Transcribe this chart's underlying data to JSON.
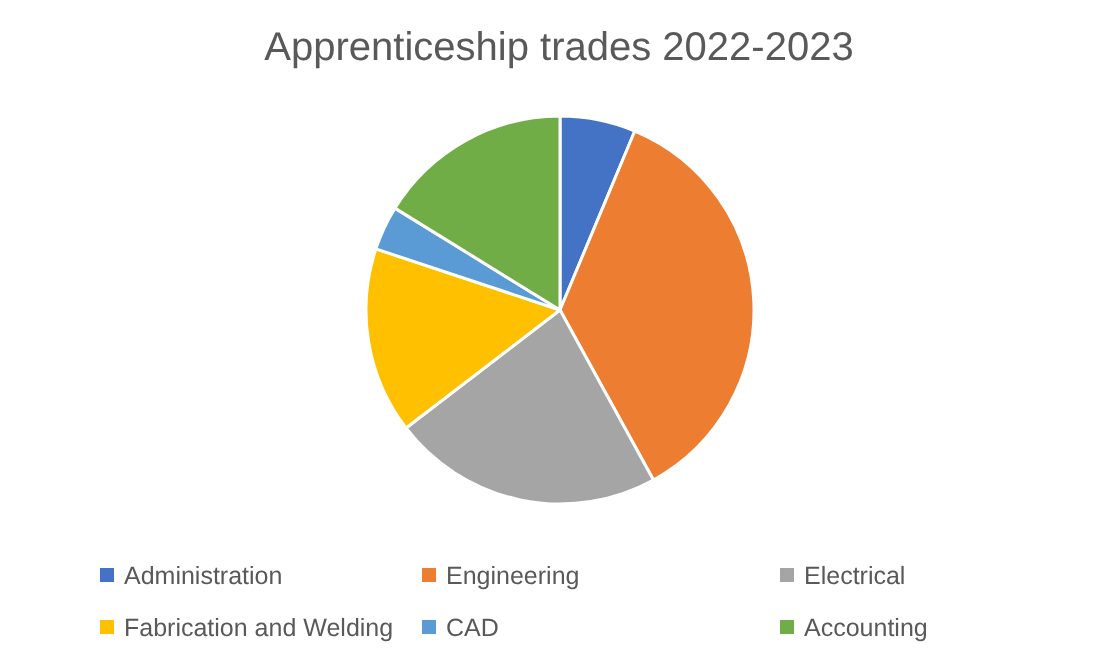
{
  "chart_data": {
    "type": "pie",
    "title": "Apprenticeship trades 2022-2023",
    "categories": [
      "Administration",
      "Engineering",
      "Electrical",
      "Fabrication and Welding",
      "CAD",
      "Accounting"
    ],
    "values": [
      6.3,
      35.7,
      22.6,
      15.5,
      3.7,
      16.2
    ],
    "colors": [
      "#4472c4",
      "#ed7d31",
      "#a5a5a5",
      "#ffc000",
      "#5b9bd5",
      "#70ad47"
    ],
    "legend": "bottom"
  }
}
